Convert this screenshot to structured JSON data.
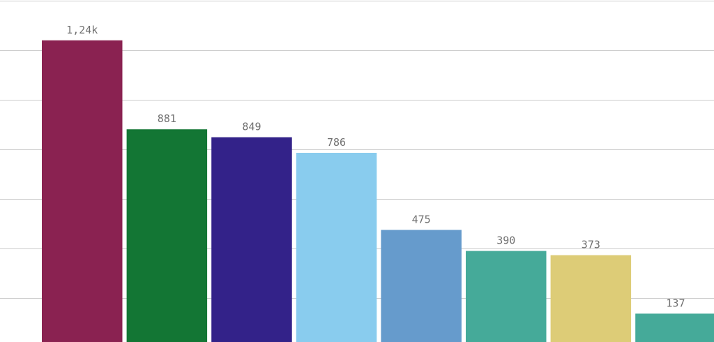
{
  "chart_data": {
    "type": "bar",
    "title": "",
    "xlabel": "",
    "ylabel": "",
    "ylim": [
      0,
      1400
    ],
    "y_gridlines": [
      200,
      400,
      600,
      800,
      1000,
      1200,
      1400
    ],
    "grid": true,
    "values": [
      1240,
      881,
      849,
      786,
      475,
      390,
      373,
      137
    ],
    "data_labels": [
      "1,24k",
      "881",
      "849",
      "786",
      "475",
      "390",
      "373",
      "137"
    ],
    "colors": [
      "#8a2251",
      "#137634",
      "#332289",
      "#89ccee",
      "#669bcc",
      "#45aa99",
      "#ddcc77",
      "#45aa99"
    ],
    "gridline_color": "#cccccc",
    "label_color": "#707070"
  }
}
